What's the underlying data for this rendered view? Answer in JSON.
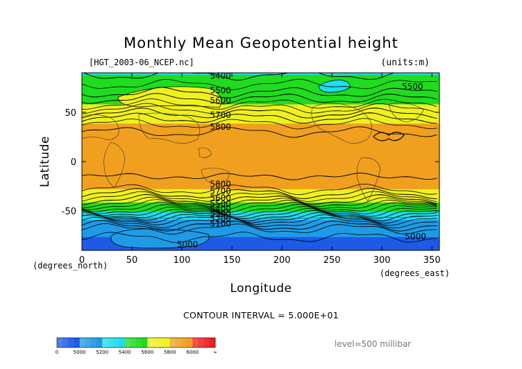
{
  "chart_data": {
    "type": "heatmap",
    "title": "Monthly Mean Geopotential height",
    "subtitle": "[HGT_2003-06_NCEP.nc]",
    "units": "(units:m)",
    "xlabel": "Longitude",
    "ylabel": "Latitude",
    "x_unit_label": "(degrees_east)",
    "y_unit_label": "(degrees_north)",
    "xlim": [
      0,
      357.5
    ],
    "ylim": [
      -90,
      90
    ],
    "x_ticks": [
      0,
      50,
      100,
      150,
      200,
      250,
      300,
      350
    ],
    "y_ticks": [
      -50,
      0,
      50
    ],
    "contour_interval_text": "CONTOUR INTERVAL = 5.000E+01",
    "level_text": "level=500 millibar",
    "colorbar": {
      "tick_labels": [
        "0",
        "5000",
        "5200",
        "5400",
        "5600",
        "5800",
        "6000",
        "∞"
      ],
      "bins": [
        {
          "from": 0,
          "to": 5000,
          "color": "#1f5ae6"
        },
        {
          "from": 5000,
          "to": 5200,
          "color": "#1f9be6"
        },
        {
          "from": 5200,
          "to": 5400,
          "color": "#1fdcf0"
        },
        {
          "from": 5400,
          "to": 5600,
          "color": "#1fdc1f"
        },
        {
          "from": 5600,
          "to": 5800,
          "color": "#f0f01f"
        },
        {
          "from": 5800,
          "to": 6000,
          "color": "#f0a01f"
        },
        {
          "from": 6000,
          "to": 9999,
          "color": "#f01f1f"
        }
      ]
    },
    "zonal_profile": [
      {
        "lat": 90,
        "value": 5390
      },
      {
        "lat": 80,
        "value": 5440
      },
      {
        "lat": 70,
        "value": 5500
      },
      {
        "lat": 60,
        "value": 5580
      },
      {
        "lat": 50,
        "value": 5690
      },
      {
        "lat": 40,
        "value": 5790
      },
      {
        "lat": 30,
        "value": 5850
      },
      {
        "lat": 20,
        "value": 5870
      },
      {
        "lat": 10,
        "value": 5865
      },
      {
        "lat": 0,
        "value": 5860
      },
      {
        "lat": -10,
        "value": 5855
      },
      {
        "lat": -20,
        "value": 5845
      },
      {
        "lat": -30,
        "value": 5790
      },
      {
        "lat": -40,
        "value": 5630
      },
      {
        "lat": -50,
        "value": 5420
      },
      {
        "lat": -60,
        "value": 5180
      },
      {
        "lat": -70,
        "value": 5020
      },
      {
        "lat": -80,
        "value": 4990
      },
      {
        "lat": -90,
        "value": 4980
      }
    ],
    "contour_labels": [
      {
        "text": "5400",
        "lon": 128,
        "lat": 87
      },
      {
        "text": "5500",
        "lon": 128,
        "lat": 72
      },
      {
        "text": "5600",
        "lon": 128,
        "lat": 62
      },
      {
        "text": "5700",
        "lon": 128,
        "lat": 47
      },
      {
        "text": "5800",
        "lon": 128,
        "lat": 35
      },
      {
        "text": "5500",
        "lon": 320,
        "lat": 76
      },
      {
        "text": "5800",
        "lon": 128,
        "lat": -23
      },
      {
        "text": "5700",
        "lon": 128,
        "lat": -30
      },
      {
        "text": "5600",
        "lon": 128,
        "lat": -37
      },
      {
        "text": "5500",
        "lon": 128,
        "lat": -43
      },
      {
        "text": "5400",
        "lon": 128,
        "lat": -48
      },
      {
        "text": "5300",
        "lon": 128,
        "lat": -53
      },
      {
        "text": "5200",
        "lon": 128,
        "lat": -58
      },
      {
        "text": "5100",
        "lon": 128,
        "lat": -63
      },
      {
        "text": "5000",
        "lon": 95,
        "lat": -84
      },
      {
        "text": "5000",
        "lon": 323,
        "lat": -76
      }
    ]
  }
}
